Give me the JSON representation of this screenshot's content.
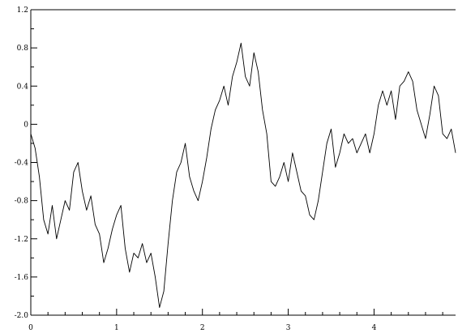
{
  "chart_data": {
    "type": "line",
    "title": "",
    "xlabel": "",
    "ylabel": "",
    "xlim": [
      0,
      4.95
    ],
    "ylim": [
      -2.0,
      1.2
    ],
    "grid": false,
    "x_ticks": [
      0,
      1,
      2,
      3,
      4
    ],
    "x_tick_labels": [
      "0",
      "1",
      "2",
      "3",
      "4"
    ],
    "y_ticks": [
      1.2,
      0.8,
      0.4,
      0,
      -0.4,
      -0.8,
      -1.2,
      -1.6,
      -2.0
    ],
    "y_tick_labels": [
      "1.2",
      "0.8",
      "0.4",
      "0",
      "-0.4",
      "-0.8",
      "-1.2",
      "-1.6",
      "-2.0"
    ],
    "series": [
      {
        "color": "#000000",
        "x": [
          0.0,
          0.05,
          0.1,
          0.15,
          0.2,
          0.25,
          0.3,
          0.35,
          0.4,
          0.45,
          0.5,
          0.55,
          0.6,
          0.65,
          0.7,
          0.75,
          0.8,
          0.85,
          0.9,
          0.95,
          1.0,
          1.05,
          1.1,
          1.15,
          1.2,
          1.25,
          1.3,
          1.35,
          1.4,
          1.45,
          1.5,
          1.55,
          1.6,
          1.65,
          1.7,
          1.75,
          1.8,
          1.85,
          1.9,
          1.95,
          2.0,
          2.05,
          2.1,
          2.15,
          2.2,
          2.25,
          2.3,
          2.35,
          2.4,
          2.45,
          2.5,
          2.55,
          2.6,
          2.65,
          2.7,
          2.75,
          2.8,
          2.85,
          2.9,
          2.95,
          3.0,
          3.05,
          3.1,
          3.15,
          3.2,
          3.25,
          3.3,
          3.35,
          3.4,
          3.45,
          3.5,
          3.55,
          3.6,
          3.65,
          3.7,
          3.75,
          3.8,
          3.85,
          3.9,
          3.95,
          4.0,
          4.05,
          4.1,
          4.15,
          4.2,
          4.25,
          4.3,
          4.35,
          4.4,
          4.45,
          4.5,
          4.55,
          4.6,
          4.65,
          4.7,
          4.75,
          4.8,
          4.85,
          4.9,
          4.95
        ],
        "values": [
          -0.1,
          -0.25,
          -0.55,
          -1.0,
          -1.15,
          -0.85,
          -1.2,
          -1.0,
          -0.8,
          -0.9,
          -0.5,
          -0.4,
          -0.7,
          -0.9,
          -0.75,
          -1.05,
          -1.15,
          -1.45,
          -1.3,
          -1.1,
          -0.95,
          -0.85,
          -1.3,
          -1.55,
          -1.35,
          -1.4,
          -1.25,
          -1.45,
          -1.35,
          -1.6,
          -1.92,
          -1.75,
          -1.25,
          -0.8,
          -0.5,
          -0.4,
          -0.2,
          -0.55,
          -0.7,
          -0.8,
          -0.6,
          -0.35,
          -0.05,
          0.15,
          0.25,
          0.4,
          0.2,
          0.5,
          0.65,
          0.85,
          0.5,
          0.4,
          0.75,
          0.55,
          0.15,
          -0.1,
          -0.6,
          -0.65,
          -0.55,
          -0.4,
          -0.6,
          -0.3,
          -0.5,
          -0.7,
          -0.75,
          -0.95,
          -1.0,
          -0.8,
          -0.5,
          -0.2,
          -0.05,
          -0.45,
          -0.3,
          -0.1,
          -0.2,
          -0.15,
          -0.3,
          -0.2,
          -0.1,
          -0.3,
          -0.1,
          0.2,
          0.35,
          0.2,
          0.35,
          0.05,
          0.4,
          0.45,
          0.55,
          0.45,
          0.15,
          0.0,
          -0.15,
          0.1,
          0.4,
          0.3,
          -0.1,
          -0.15,
          -0.05,
          -0.3
        ]
      }
    ]
  }
}
